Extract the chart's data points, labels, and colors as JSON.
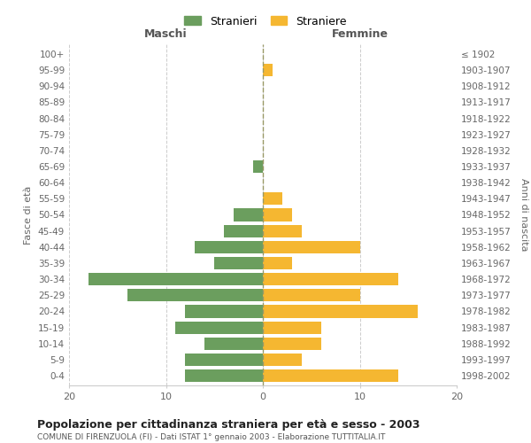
{
  "age_groups": [
    "0-4",
    "5-9",
    "10-14",
    "15-19",
    "20-24",
    "25-29",
    "30-34",
    "35-39",
    "40-44",
    "45-49",
    "50-54",
    "55-59",
    "60-64",
    "65-69",
    "70-74",
    "75-79",
    "80-84",
    "85-89",
    "90-94",
    "95-99",
    "100+"
  ],
  "birth_years": [
    "1998-2002",
    "1993-1997",
    "1988-1992",
    "1983-1987",
    "1978-1982",
    "1973-1977",
    "1968-1972",
    "1963-1967",
    "1958-1962",
    "1953-1957",
    "1948-1952",
    "1943-1947",
    "1938-1942",
    "1933-1937",
    "1928-1932",
    "1923-1927",
    "1918-1922",
    "1913-1917",
    "1908-1912",
    "1903-1907",
    "≤ 1902"
  ],
  "maschi": [
    8,
    8,
    6,
    9,
    8,
    14,
    18,
    5,
    7,
    4,
    3,
    0,
    0,
    1,
    0,
    0,
    0,
    0,
    0,
    0,
    0
  ],
  "femmine": [
    14,
    4,
    6,
    6,
    16,
    10,
    14,
    3,
    10,
    4,
    3,
    2,
    0,
    0,
    0,
    0,
    0,
    0,
    0,
    1,
    0
  ],
  "color_maschi": "#6b9e5e",
  "color_femmine": "#f5b731",
  "title": "Popolazione per cittadinanza straniera per età e sesso - 2003",
  "subtitle": "COMUNE DI FIRENZUOLA (FI) - Dati ISTAT 1° gennaio 2003 - Elaborazione TUTTITALIA.IT",
  "xlabel_left": "Maschi",
  "xlabel_right": "Femmine",
  "ylabel_left": "Fasce di età",
  "ylabel_right": "Anni di nascita",
  "xlim": 20,
  "legend_stranieri": "Stranieri",
  "legend_straniere": "Straniere",
  "bg_color": "#ffffff",
  "grid_color": "#cccccc"
}
